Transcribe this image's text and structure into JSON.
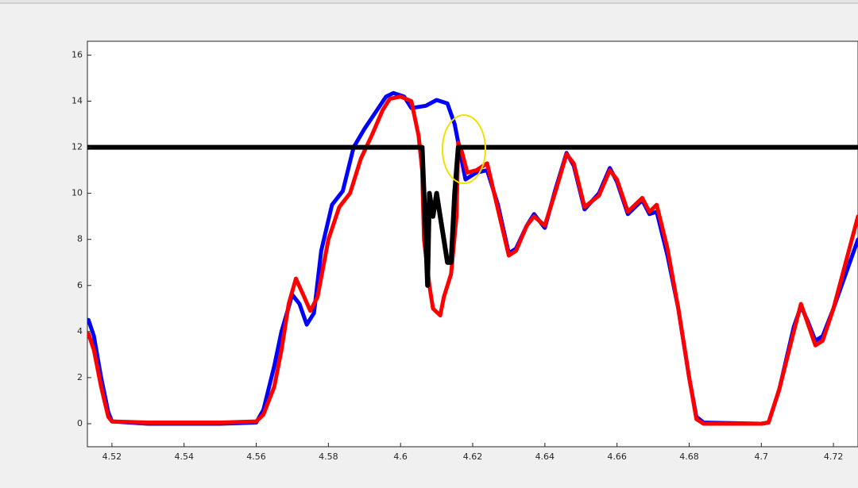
{
  "chart_data": {
    "type": "line",
    "xlim": [
      4.5132,
      4.7268
    ],
    "ylim": [
      -1,
      16.6
    ],
    "xticks": [
      4.52,
      4.54,
      4.56,
      4.58,
      4.6,
      4.62,
      4.64,
      4.66,
      4.68,
      4.7,
      4.72
    ],
    "yticks": [
      0,
      2,
      4,
      6,
      8,
      10,
      12,
      14,
      16
    ],
    "series": [
      {
        "color": "#0000ff",
        "x": [
          4.5135,
          4.515,
          4.517,
          4.519,
          4.52,
          4.53,
          4.55,
          4.56,
          4.562,
          4.565,
          4.567,
          4.57,
          4.572,
          4.574,
          4.576,
          4.578,
          4.581,
          4.584,
          4.587,
          4.59,
          4.593,
          4.596,
          4.598,
          4.601,
          4.603,
          4.607,
          4.61,
          4.613,
          4.615,
          4.6165,
          4.618,
          4.621,
          4.624,
          4.627,
          4.63,
          4.632,
          4.635,
          4.637,
          4.64,
          4.643,
          4.646,
          4.648,
          4.651,
          4.655,
          4.658,
          4.66,
          4.663,
          4.667,
          4.669,
          4.671,
          4.674,
          4.677,
          4.68,
          4.682,
          4.684,
          4.7,
          4.702,
          4.705,
          4.709,
          4.711,
          4.713,
          4.715,
          4.717,
          4.72,
          4.7268
        ],
        "values": [
          4.5,
          3.8,
          2,
          0.5,
          0.1,
          0,
          0,
          0.05,
          0.6,
          2.5,
          4,
          5.6,
          5.2,
          4.3,
          4.8,
          7.5,
          9.5,
          10.1,
          12,
          12.8,
          13.5,
          14.2,
          14.35,
          14.2,
          13.7,
          13.8,
          14.05,
          13.9,
          13,
          11.8,
          10.6,
          10.9,
          11,
          9.5,
          7.4,
          7.6,
          8.6,
          9.1,
          8.5,
          10.2,
          11.75,
          11.2,
          9.3,
          10,
          11.1,
          10.5,
          9.1,
          9.7,
          9.1,
          9.2,
          7.3,
          5,
          2,
          0.3,
          0.05,
          0,
          0.05,
          1.5,
          4.2,
          5.1,
          4.4,
          3.6,
          3.8,
          5,
          8
        ]
      },
      {
        "color": "#ff0000",
        "x": [
          4.5135,
          4.515,
          4.517,
          4.519,
          4.52,
          4.53,
          4.55,
          4.56,
          4.562,
          4.565,
          4.567,
          4.569,
          4.571,
          4.573,
          4.575,
          4.577,
          4.58,
          4.583,
          4.586,
          4.589,
          4.592,
          4.595,
          4.597,
          4.6,
          4.603,
          4.605,
          4.606,
          4.6065,
          4.608,
          4.609,
          4.611,
          4.612,
          4.614,
          4.6155,
          4.616,
          4.617,
          4.6185,
          4.621,
          4.624,
          4.627,
          4.63,
          4.632,
          4.635,
          4.637,
          4.64,
          4.643,
          4.646,
          4.648,
          4.651,
          4.655,
          4.658,
          4.66,
          4.663,
          4.667,
          4.669,
          4.671,
          4.674,
          4.677,
          4.68,
          4.682,
          4.684,
          4.7,
          4.702,
          4.705,
          4.709,
          4.711,
          4.713,
          4.715,
          4.717,
          4.72,
          4.7268
        ],
        "values": [
          3.9,
          3.2,
          1.6,
          0.3,
          0.1,
          0.05,
          0.05,
          0.1,
          0.4,
          1.6,
          3.2,
          5.2,
          6.3,
          5.6,
          4.9,
          5.5,
          8,
          9.4,
          10,
          11.5,
          12.5,
          13.6,
          14.1,
          14.2,
          14,
          12.5,
          11,
          8,
          6,
          5,
          4.7,
          5.5,
          6.5,
          9,
          12.2,
          11.8,
          10.9,
          11,
          11.3,
          9.3,
          7.3,
          7.5,
          8.6,
          9,
          8.6,
          10.1,
          11.7,
          11.3,
          9.4,
          9.9,
          11,
          10.6,
          9.2,
          9.8,
          9.2,
          9.5,
          7.6,
          5,
          2,
          0.2,
          0,
          0,
          0.05,
          1.5,
          4,
          5.2,
          4.3,
          3.4,
          3.6,
          5,
          9
        ]
      },
      {
        "color": "#000000",
        "x": [
          4.5132,
          4.606,
          4.607,
          4.6075,
          4.608,
          4.609,
          4.61,
          4.611,
          4.612,
          4.613,
          4.614,
          4.615,
          4.616,
          4.7268
        ],
        "values": [
          12,
          12,
          8,
          6,
          10,
          9,
          10,
          9,
          8,
          7,
          7,
          10,
          12,
          12
        ]
      }
    ]
  }
}
